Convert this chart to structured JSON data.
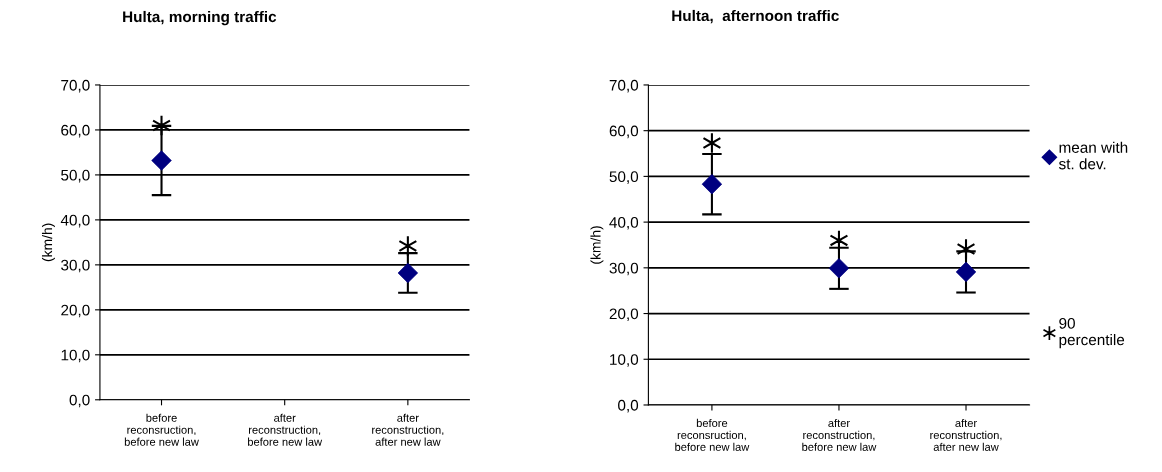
{
  "chart_data": [
    {
      "type": "scatter",
      "title": "Hulta, morning traffic",
      "ylabel": "(km/h)",
      "categories": [
        "before\nreconsruction,\nbefore new law",
        "after\nreconstruction,\nbefore new law",
        "after\nreconstruction,\nafter new law"
      ],
      "series": [
        {
          "color": "#000080",
          "marker": "diamond",
          "values": [
            53.2,
            null,
            28.2
          ],
          "errors": [
            7.7,
            null,
            4.4
          ]
        },
        {
          "color": "#000000",
          "marker": "cross",
          "values": [
            61.0,
            null,
            34.2
          ]
        }
      ],
      "ylim": [
        0,
        70
      ],
      "yticks": [
        {
          "value": 0,
          "label": "0,0"
        },
        {
          "value": 10,
          "label": "10,0"
        },
        {
          "value": 20,
          "label": "20,0"
        },
        {
          "value": 30,
          "label": "30,0"
        },
        {
          "value": 40,
          "label": "40,0"
        },
        {
          "value": 50,
          "label": "50,0"
        },
        {
          "value": 60,
          "label": "60,0"
        },
        {
          "value": 70,
          "label": "70,0"
        }
      ],
      "grid": "y"
    },
    {
      "type": "scatter",
      "title": "Hulta,  afternoon traffic",
      "ylabel": "(km/h)",
      "categories": [
        "before\nreconsruction,\nbefore new law",
        "after\nreconstruction,\nbefore new law",
        "after\nreconstruction,\nafter new law"
      ],
      "series": [
        {
          "name": "mean with\nst. dev.",
          "color": "#000080",
          "marker": "diamond",
          "values": [
            48.3,
            29.9,
            29.1
          ],
          "errors": [
            6.6,
            4.5,
            4.5
          ]
        },
        {
          "name": "90\npercentile",
          "color": "#000000",
          "marker": "cross",
          "values": [
            57.3,
            36.0,
            34.1
          ]
        }
      ],
      "ylim": [
        0,
        70
      ],
      "yticks": [
        {
          "value": 0,
          "label": "0,0"
        },
        {
          "value": 10,
          "label": "10,0"
        },
        {
          "value": 20,
          "label": "20,0"
        },
        {
          "value": 30,
          "label": "30,0"
        },
        {
          "value": 40,
          "label": "40,0"
        },
        {
          "value": 50,
          "label": "50,0"
        },
        {
          "value": 60,
          "label": "60,0"
        },
        {
          "value": 70,
          "label": "70,0"
        }
      ],
      "grid": "y",
      "legend": "right"
    }
  ]
}
